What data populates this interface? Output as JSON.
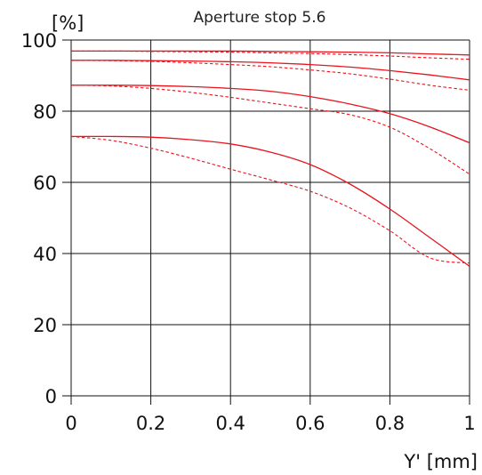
{
  "chart_data": {
    "type": "line",
    "title": "Aperture stop 5.6",
    "xlabel": "Y' [mm]",
    "ylabel": "[%]",
    "xlim": [
      0,
      1
    ],
    "ylim": [
      0,
      100
    ],
    "xticks": [
      0,
      0.2,
      0.4,
      0.6,
      0.8,
      1
    ],
    "xtick_labels": [
      "0",
      "0.2",
      "0.4",
      "0.6",
      "0.8",
      "1"
    ],
    "yticks": [
      0,
      20,
      40,
      60,
      80,
      100
    ],
    "ytick_labels": [
      "0",
      "20",
      "40",
      "60",
      "80",
      "100"
    ],
    "grid": true,
    "line_color": "#e8141e",
    "x": [
      0,
      0.1,
      0.2,
      0.3,
      0.4,
      0.5,
      0.6,
      0.7,
      0.8,
      0.9,
      1.0
    ],
    "series": [
      {
        "style": "solid",
        "values": [
          96.9,
          96.9,
          96.9,
          96.9,
          96.9,
          96.8,
          96.7,
          96.6,
          96.4,
          96.1,
          95.8
        ]
      },
      {
        "style": "dashed",
        "values": [
          96.9,
          96.9,
          96.8,
          96.7,
          96.6,
          96.4,
          96.2,
          95.9,
          95.5,
          95.0,
          94.6
        ]
      },
      {
        "style": "solid",
        "values": [
          94.3,
          94.3,
          94.2,
          94.1,
          93.9,
          93.6,
          93.1,
          92.4,
          91.4,
          90.2,
          88.8
        ]
      },
      {
        "style": "dashed",
        "values": [
          94.3,
          94.2,
          94.0,
          93.6,
          93.1,
          92.5,
          91.6,
          90.5,
          89.0,
          87.3,
          85.9
        ]
      },
      {
        "style": "solid",
        "values": [
          87.3,
          87.3,
          87.2,
          86.9,
          86.4,
          85.6,
          84.1,
          82.0,
          79.3,
          75.6,
          71.1
        ]
      },
      {
        "style": "dashed",
        "values": [
          87.3,
          87.1,
          86.4,
          85.3,
          83.9,
          82.3,
          80.7,
          79.0,
          75.5,
          69.5,
          62.3
        ]
      },
      {
        "style": "solid",
        "values": [
          72.9,
          72.9,
          72.7,
          72.0,
          70.8,
          68.5,
          65.0,
          59.5,
          52.5,
          44.5,
          36.4
        ]
      },
      {
        "style": "dashed",
        "values": [
          72.9,
          71.8,
          69.6,
          66.8,
          63.7,
          60.7,
          57.5,
          52.8,
          46.4,
          38.8,
          37.3
        ]
      }
    ]
  }
}
